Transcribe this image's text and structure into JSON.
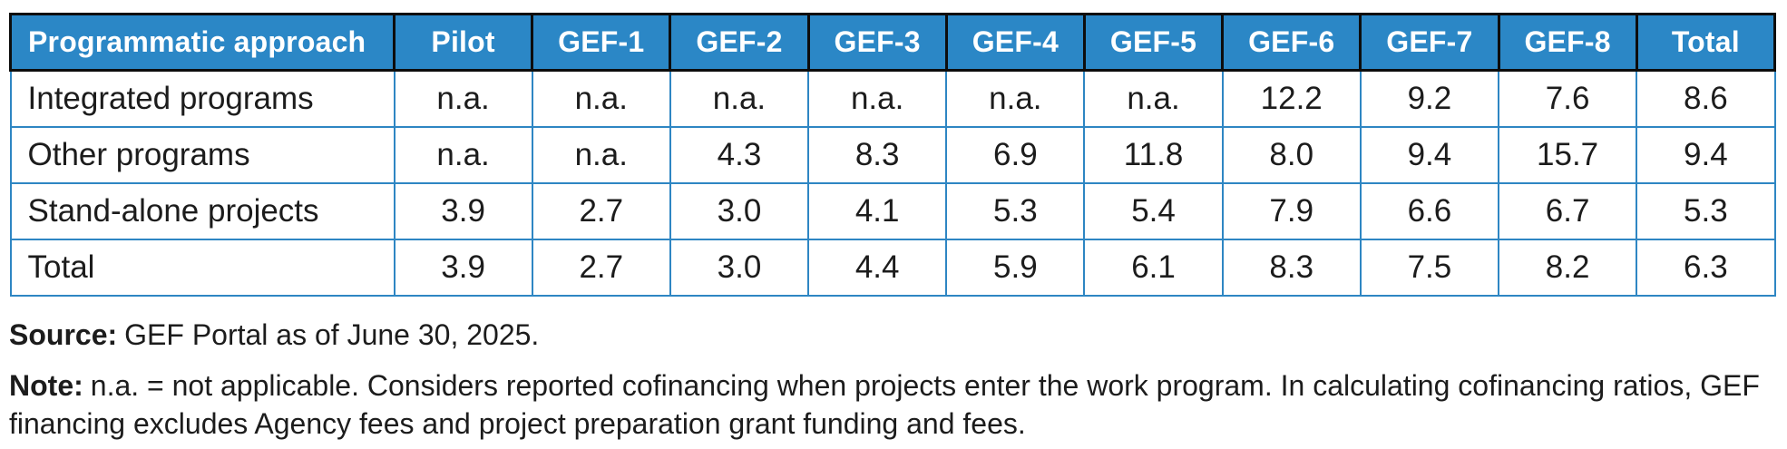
{
  "colors": {
    "header_bg": "#2b87c6",
    "header_text": "#ffffff",
    "header_border": "#0d0d0d",
    "body_border": "#2e86c3",
    "text": "#1c1c1c"
  },
  "chart_data": {
    "type": "table",
    "columns": [
      "Programmatic approach",
      "Pilot",
      "GEF-1",
      "GEF-2",
      "GEF-3",
      "GEF-4",
      "GEF-5",
      "GEF-6",
      "GEF-7",
      "GEF-8",
      "Total"
    ],
    "rows": [
      {
        "label": "Integrated programs",
        "values": [
          "n.a.",
          "n.a.",
          "n.a.",
          "n.a.",
          "n.a.",
          "n.a.",
          "12.2",
          "9.2",
          "7.6",
          "8.6"
        ]
      },
      {
        "label": "Other programs",
        "values": [
          "n.a.",
          "n.a.",
          "4.3",
          "8.3",
          "6.9",
          "11.8",
          "8.0",
          "9.4",
          "15.7",
          "9.4"
        ]
      },
      {
        "label": "Stand-alone projects",
        "values": [
          "3.9",
          "2.7",
          "3.0",
          "4.1",
          "5.3",
          "5.4",
          "7.9",
          "6.6",
          "6.7",
          "5.3"
        ]
      },
      {
        "label": "Total",
        "values": [
          "3.9",
          "2.7",
          "3.0",
          "4.4",
          "5.9",
          "6.1",
          "8.3",
          "7.5",
          "8.2",
          "6.3"
        ]
      }
    ]
  },
  "source": {
    "label": "Source:",
    "text": "GEF Portal as of June 30, 2025."
  },
  "note": {
    "label": "Note:",
    "text": "n.a. = not applicable. Considers reported cofinancing when projects enter the work program. In calculating cofinancing ratios, GEF financing excludes Agency fees and project preparation grant funding and fees."
  }
}
